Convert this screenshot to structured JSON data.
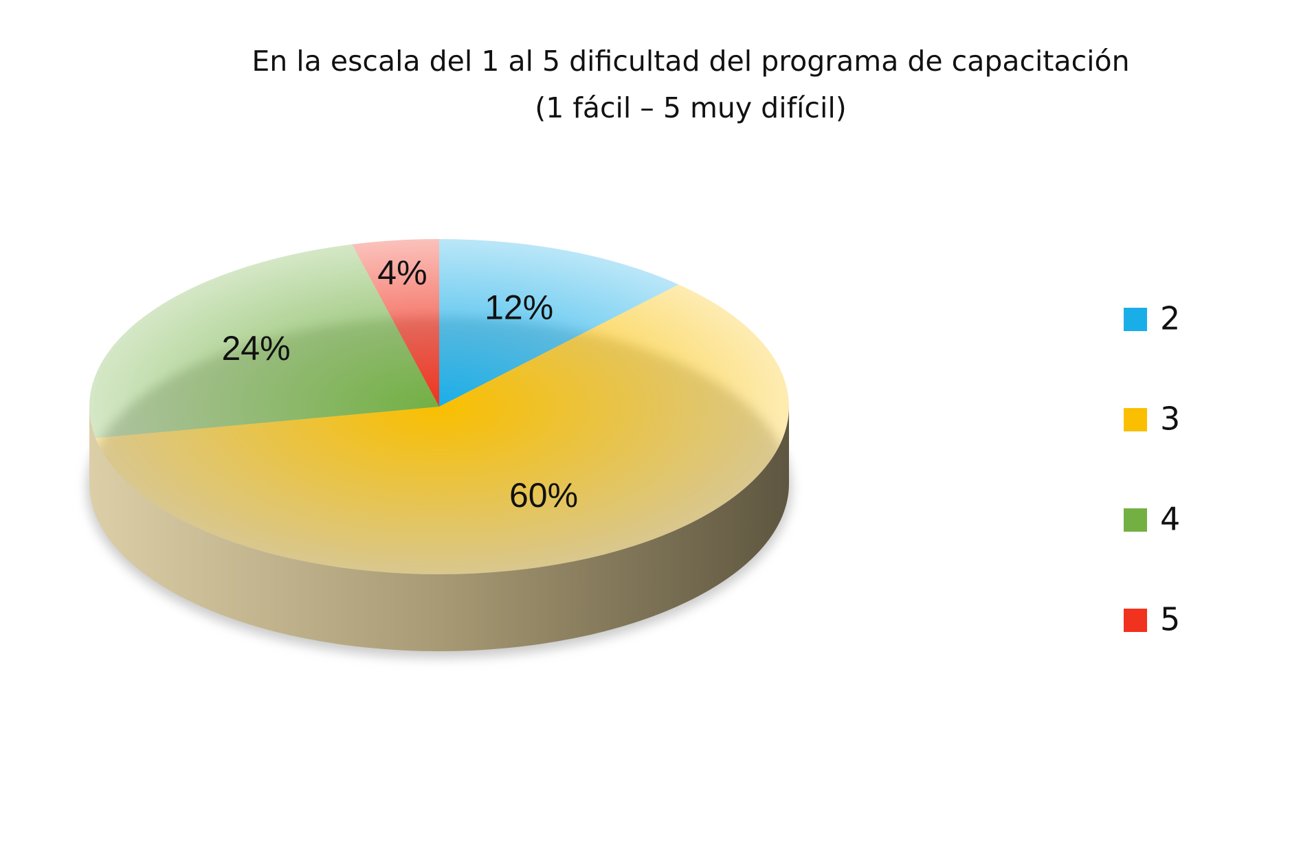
{
  "chart_data": {
    "type": "pie",
    "title": "En la escala del 1 al 5 dificultad del programa de capacitación",
    "subtitle": "(1 fácil – 5 muy difícil)",
    "categories": [
      "2",
      "3",
      "4",
      "5"
    ],
    "values": [
      12,
      60,
      24,
      4
    ],
    "value_labels": [
      "12%",
      "60%",
      "24%",
      "4%"
    ],
    "colors": [
      "#1aaee8",
      "#f9bf00",
      "#72b043",
      "#f0321e"
    ],
    "legend": "right"
  }
}
